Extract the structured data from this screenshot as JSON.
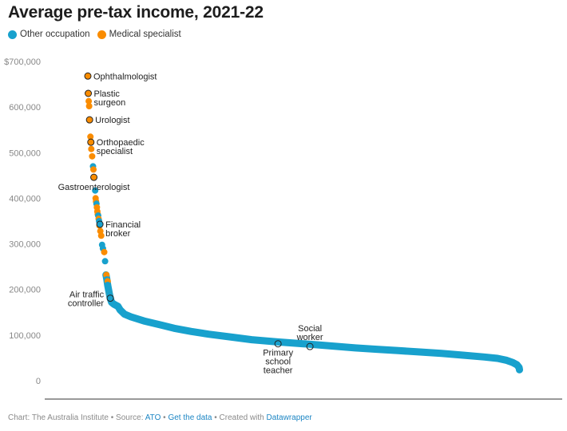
{
  "colors": {
    "other": "#18a1cd",
    "medical": "#fa8c00",
    "axis": "#333333"
  },
  "chart_data": {
    "type": "scatter",
    "title": "Average pre-tax income, 2021-22",
    "xlabel": "",
    "ylabel": "",
    "xlim": [
      0,
      1200
    ],
    "ylim": [
      0,
      700000
    ],
    "yticks": [
      {
        "value": 700000,
        "label": "$700,000"
      },
      {
        "value": 600000,
        "label": "600,000"
      },
      {
        "value": 500000,
        "label": "500,000"
      },
      {
        "value": 400000,
        "label": "400,000"
      },
      {
        "value": 300000,
        "label": "300,000"
      },
      {
        "value": 200000,
        "label": "200,000"
      },
      {
        "value": 100000,
        "label": "100,000"
      },
      {
        "value": 0,
        "label": "0"
      }
    ],
    "legend": [
      {
        "key": "other",
        "label": "Other occupation"
      },
      {
        "key": "medical",
        "label": "Medical specialist"
      }
    ],
    "legend_position": "top-left",
    "series": [
      {
        "name": "Medical specialist",
        "key": "medical",
        "points": [
          {
            "x": 100,
            "y": 668000
          },
          {
            "x": 101,
            "y": 630000
          },
          {
            "x": 102,
            "y": 613000
          },
          {
            "x": 103,
            "y": 602000
          },
          {
            "x": 104,
            "y": 572000
          },
          {
            "x": 106,
            "y": 535000
          },
          {
            "x": 107,
            "y": 523000
          },
          {
            "x": 108,
            "y": 508000
          },
          {
            "x": 110,
            "y": 492000
          },
          {
            "x": 113,
            "y": 463000
          },
          {
            "x": 114,
            "y": 446000
          },
          {
            "x": 118,
            "y": 400000
          },
          {
            "x": 119,
            "y": 393000
          },
          {
            "x": 121,
            "y": 380000
          },
          {
            "x": 122,
            "y": 371000
          },
          {
            "x": 123,
            "y": 365000
          },
          {
            "x": 125,
            "y": 355000
          },
          {
            "x": 127,
            "y": 340000
          },
          {
            "x": 129,
            "y": 328000
          },
          {
            "x": 131,
            "y": 318000
          },
          {
            "x": 138,
            "y": 282000
          },
          {
            "x": 143,
            "y": 232000
          },
          {
            "x": 146,
            "y": 218000
          },
          {
            "x": 150,
            "y": 190000
          }
        ]
      },
      {
        "name": "Other occupation",
        "key": "other",
        "points": [
          {
            "x": 112,
            "y": 470000
          },
          {
            "x": 117,
            "y": 417000
          },
          {
            "x": 120,
            "y": 388000
          },
          {
            "x": 124,
            "y": 362000
          },
          {
            "x": 126,
            "y": 350000
          },
          {
            "x": 128,
            "y": 343000
          },
          {
            "x": 133,
            "y": 298000
          },
          {
            "x": 135,
            "y": 290000
          },
          {
            "x": 140,
            "y": 262000
          },
          {
            "x": 142,
            "y": 232000
          },
          {
            "x": 144,
            "y": 222000
          },
          {
            "x": 146,
            "y": 210000
          },
          {
            "x": 148,
            "y": 200000
          },
          {
            "x": 150,
            "y": 190000
          },
          {
            "x": 152,
            "y": 181000
          },
          {
            "x": 155,
            "y": 172000
          },
          {
            "x": 160,
            "y": 168000
          },
          {
            "x": 170,
            "y": 163000
          },
          {
            "x": 175,
            "y": 155000
          },
          {
            "x": 185,
            "y": 146000
          },
          {
            "x": 200,
            "y": 140000
          },
          {
            "x": 230,
            "y": 131000
          },
          {
            "x": 270,
            "y": 122000
          },
          {
            "x": 300,
            "y": 115000
          },
          {
            "x": 340,
            "y": 108000
          },
          {
            "x": 380,
            "y": 102000
          },
          {
            "x": 430,
            "y": 96000
          },
          {
            "x": 480,
            "y": 90000
          },
          {
            "x": 540,
            "y": 85000
          },
          {
            "x": 600,
            "y": 81000
          },
          {
            "x": 640,
            "y": 78000
          },
          {
            "x": 680,
            "y": 75000
          },
          {
            "x": 720,
            "y": 72000
          },
          {
            "x": 770,
            "y": 69000
          },
          {
            "x": 820,
            "y": 66000
          },
          {
            "x": 870,
            "y": 63000
          },
          {
            "x": 920,
            "y": 60000
          },
          {
            "x": 970,
            "y": 56000
          },
          {
            "x": 1020,
            "y": 52000
          },
          {
            "x": 1050,
            "y": 49000
          },
          {
            "x": 1070,
            "y": 45000
          },
          {
            "x": 1085,
            "y": 40000
          },
          {
            "x": 1095,
            "y": 35000
          },
          {
            "x": 1100,
            "y": 29000
          },
          {
            "x": 1101,
            "y": 24000
          }
        ]
      }
    ],
    "annotations": [
      {
        "label": [
          "Ophthalmologist"
        ],
        "x": 100,
        "y": 668000,
        "key": "medical",
        "side": "right"
      },
      {
        "label": [
          "Plastic",
          "surgeon"
        ],
        "x": 101,
        "y": 630000,
        "key": "medical",
        "side": "right"
      },
      {
        "label": [
          "Urologist"
        ],
        "x": 104,
        "y": 572000,
        "key": "medical",
        "side": "right"
      },
      {
        "label": [
          "Orthopaedic",
          "specialist"
        ],
        "x": 107,
        "y": 523000,
        "key": "medical",
        "side": "right"
      },
      {
        "label": [
          "Gastroenterologist"
        ],
        "x": 114,
        "y": 446000,
        "key": "medical",
        "side": "below"
      },
      {
        "label": [
          "Financial",
          "broker"
        ],
        "x": 128,
        "y": 343000,
        "key": "other",
        "side": "right"
      },
      {
        "label": [
          "Air traffic",
          "controller"
        ],
        "x": 152,
        "y": 181000,
        "key": "other",
        "side": "left"
      },
      {
        "label": [
          "Primary",
          "school",
          "teacher"
        ],
        "x": 541,
        "y": 81000,
        "key": "other",
        "side": "below"
      },
      {
        "label": [
          "Social",
          "worker"
        ],
        "x": 615,
        "y": 75000,
        "key": "other",
        "side": "above"
      }
    ]
  },
  "footer": {
    "prefix": "Chart: The Australia Institute • Source: ",
    "source_link": "ATO",
    "sep1": " • ",
    "data_link": "Get the data",
    "sep2": " • Created with ",
    "tool_link": "Datawrapper"
  }
}
